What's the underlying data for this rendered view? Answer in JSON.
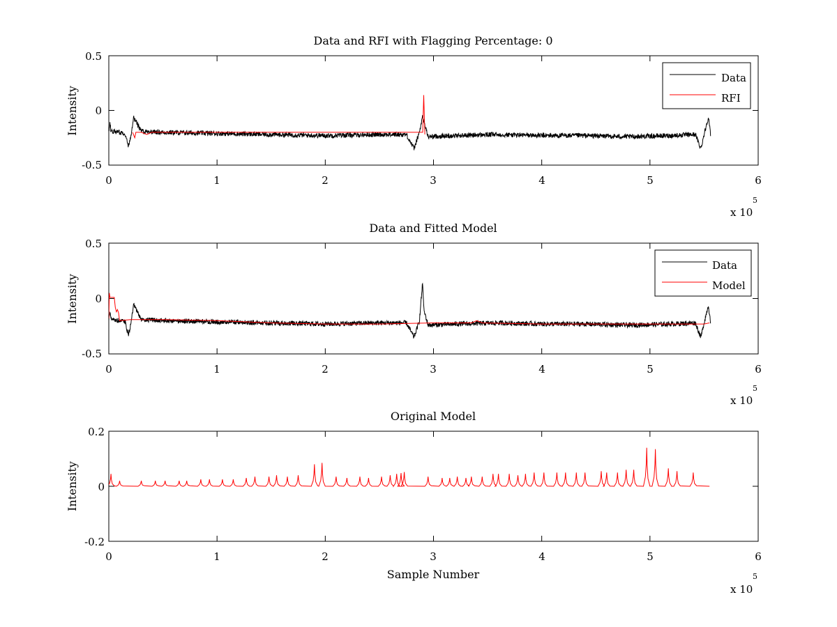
{
  "chart_data": [
    {
      "type": "line",
      "title": "Data and RFI with Flagging Percentage: 0",
      "xlabel": "",
      "ylabel": "Intensity",
      "xlim": [
        0,
        6
      ],
      "ylim": [
        -0.5,
        0.5
      ],
      "x_ticks": [
        "0",
        "1",
        "2",
        "3",
        "4",
        "5",
        "6"
      ],
      "y_ticks": [
        "-0.5",
        "0",
        "0.5"
      ],
      "x_multiplier": "x 10",
      "x_multiplier_exponent": "5",
      "legend": {
        "placement": "top-right",
        "entries": [
          {
            "label": "Data",
            "color": "#000000"
          },
          {
            "label": "RFI",
            "color": "#ff0000"
          }
        ]
      },
      "series": [
        {
          "name": "Data",
          "color": "#000000",
          "baseline": -0.2,
          "x": [
            0.0,
            0.01,
            0.02,
            0.1,
            0.15,
            0.18,
            0.2,
            0.23,
            0.3,
            0.5,
            1.0,
            1.5,
            2.0,
            2.5,
            2.75,
            2.82,
            2.87,
            2.9,
            2.95,
            3.2,
            3.6,
            4.0,
            4.4,
            4.8,
            5.2,
            5.42,
            5.47,
            5.5,
            5.54,
            5.56
          ],
          "y": [
            -0.2,
            -0.11,
            -0.19,
            -0.2,
            -0.21,
            -0.33,
            -0.25,
            -0.06,
            -0.19,
            -0.2,
            -0.21,
            -0.22,
            -0.23,
            -0.22,
            -0.22,
            -0.35,
            -0.2,
            -0.06,
            -0.24,
            -0.23,
            -0.22,
            -0.23,
            -0.23,
            -0.24,
            -0.23,
            -0.22,
            -0.35,
            -0.22,
            -0.06,
            -0.22
          ]
        },
        {
          "name": "RFI",
          "color": "#ff0000",
          "x": [
            0.22,
            0.24,
            0.25,
            0.3,
            0.35,
            0.4,
            2.9,
            2.91,
            2.92
          ],
          "y": [
            -0.2,
            -0.25,
            -0.2,
            -0.2,
            -0.22,
            -0.2,
            -0.2,
            0.14,
            -0.22
          ]
        }
      ]
    },
    {
      "type": "line",
      "title": "Data and Fitted Model",
      "xlabel": "",
      "ylabel": "Intensity",
      "xlim": [
        0,
        6
      ],
      "ylim": [
        -0.5,
        0.5
      ],
      "x_ticks": [
        "0",
        "1",
        "2",
        "3",
        "4",
        "5",
        "6"
      ],
      "y_ticks": [
        "-0.5",
        "0",
        "0.5"
      ],
      "x_multiplier": "x 10",
      "x_multiplier_exponent": "5",
      "legend": {
        "placement": "top-right",
        "entries": [
          {
            "label": "Data",
            "color": "#000000"
          },
          {
            "label": "Model",
            "color": "#ff0000"
          }
        ]
      },
      "series": [
        {
          "name": "Data",
          "color": "#000000",
          "baseline": -0.2,
          "x": [
            0.0,
            0.01,
            0.02,
            0.1,
            0.15,
            0.18,
            0.2,
            0.23,
            0.3,
            0.5,
            1.0,
            1.5,
            2.0,
            2.5,
            2.75,
            2.82,
            2.87,
            2.9,
            2.91,
            2.95,
            3.2,
            3.6,
            4.0,
            4.4,
            4.8,
            5.2,
            5.42,
            5.47,
            5.5,
            5.54,
            5.56
          ],
          "y": [
            -0.2,
            -0.11,
            -0.19,
            -0.2,
            -0.21,
            -0.33,
            -0.25,
            -0.06,
            -0.19,
            -0.2,
            -0.21,
            -0.22,
            -0.23,
            -0.22,
            -0.22,
            -0.35,
            -0.2,
            0.15,
            -0.1,
            -0.24,
            -0.23,
            -0.22,
            -0.23,
            -0.23,
            -0.24,
            -0.23,
            -0.22,
            -0.35,
            -0.22,
            -0.06,
            -0.22
          ]
        },
        {
          "name": "Model",
          "color": "#ff0000",
          "x": [
            0.0,
            0.005,
            0.01,
            0.05,
            0.06,
            0.07,
            0.08,
            0.09,
            0.1,
            0.2,
            0.5,
            1.0,
            1.5,
            2.0,
            2.5,
            3.0,
            3.35,
            3.4,
            3.45,
            4.0,
            4.5,
            5.0,
            5.5,
            5.55
          ],
          "y": [
            -0.18,
            0.05,
            0.01,
            0.01,
            -0.08,
            -0.12,
            -0.1,
            -0.13,
            -0.2,
            -0.19,
            -0.19,
            -0.2,
            -0.22,
            -0.23,
            -0.23,
            -0.22,
            -0.22,
            -0.2,
            -0.22,
            -0.23,
            -0.23,
            -0.23,
            -0.23,
            -0.22
          ]
        }
      ]
    },
    {
      "type": "line",
      "title": "Original Model",
      "xlabel": "Sample Number",
      "ylabel": "Intensity",
      "xlim": [
        0,
        6
      ],
      "ylim": [
        -0.2,
        0.2
      ],
      "x_ticks": [
        "0",
        "1",
        "2",
        "3",
        "4",
        "5",
        "6"
      ],
      "y_ticks": [
        "-0.2",
        "0",
        "0.2"
      ],
      "x_multiplier": "x 10",
      "x_multiplier_exponent": "5",
      "series": [
        {
          "name": "",
          "color": "#ff0000",
          "baseline": 0,
          "x_end": 5.55,
          "peaks_x": [
            0.02,
            0.1,
            0.3,
            0.43,
            0.52,
            0.65,
            0.72,
            0.85,
            0.93,
            1.05,
            1.15,
            1.27,
            1.35,
            1.48,
            1.55,
            1.65,
            1.75,
            1.9,
            1.97,
            2.1,
            2.2,
            2.32,
            2.4,
            2.52,
            2.6,
            2.66,
            2.7,
            2.73,
            2.95,
            3.08,
            3.15,
            3.22,
            3.3,
            3.35,
            3.45,
            3.55,
            3.6,
            3.7,
            3.78,
            3.85,
            3.93,
            4.02,
            4.14,
            4.22,
            4.32,
            4.4,
            4.55,
            4.6,
            4.7,
            4.78,
            4.85,
            4.97,
            5.05,
            5.17,
            5.25,
            5.4
          ],
          "peaks_y": [
            0.045,
            0.02,
            0.02,
            0.02,
            0.02,
            0.02,
            0.02,
            0.025,
            0.025,
            0.025,
            0.025,
            0.03,
            0.035,
            0.035,
            0.04,
            0.035,
            0.04,
            0.08,
            0.085,
            0.035,
            0.03,
            0.035,
            0.03,
            0.035,
            0.04,
            0.045,
            0.048,
            0.052,
            0.035,
            0.03,
            0.03,
            0.035,
            0.03,
            0.035,
            0.035,
            0.045,
            0.045,
            0.045,
            0.04,
            0.045,
            0.05,
            0.05,
            0.05,
            0.05,
            0.05,
            0.05,
            0.055,
            0.05,
            0.05,
            0.06,
            0.06,
            0.14,
            0.135,
            0.065,
            0.055,
            0.05
          ]
        }
      ]
    }
  ]
}
